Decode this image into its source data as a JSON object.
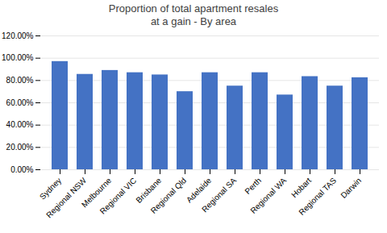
{
  "chart_data": {
    "type": "bar",
    "title": "Proportion of total apartment resales\nat a gain - By area",
    "categories": [
      "Sydney",
      "Regional NSW",
      "Melbourne",
      "Regional VIC",
      "Brisbane",
      "Regional Qld",
      "Adelaide",
      "Regional SA",
      "Perth",
      "Regional WA",
      "Hobart",
      "Regional TAS",
      "Darwin"
    ],
    "values": [
      0.97,
      0.855,
      0.89,
      0.87,
      0.85,
      0.7,
      0.87,
      0.75,
      0.87,
      0.67,
      0.835,
      0.75,
      0.825
    ],
    "color": "#4472C4",
    "ylim": [
      0,
      1.2
    ],
    "yticks": [
      {
        "value": 0.0,
        "label": "0.00%"
      },
      {
        "value": 0.2,
        "label": "20.00%"
      },
      {
        "value": 0.4,
        "label": "40.00%"
      },
      {
        "value": 0.6,
        "label": "60.00%"
      },
      {
        "value": 0.8,
        "label": "80.00%"
      },
      {
        "value": 1.0,
        "label": "100.00%"
      },
      {
        "value": 1.2,
        "label": "120.00%"
      }
    ],
    "grid": true
  }
}
